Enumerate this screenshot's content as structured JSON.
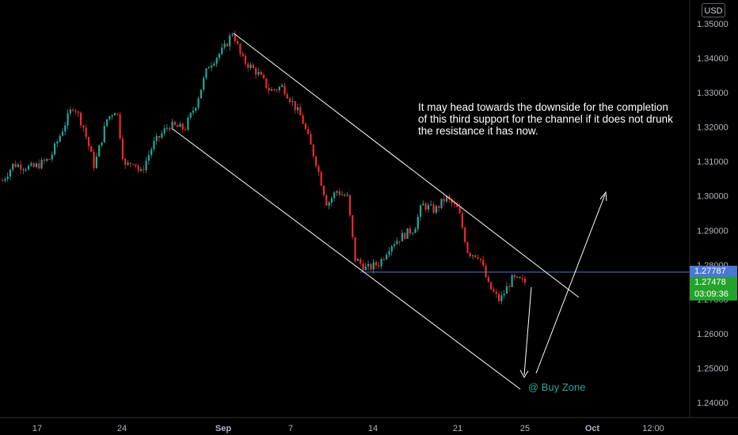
{
  "currency": "USD",
  "annotation_text": "It may head towards the downside for the completion of this third support for the channel if it does not drunk the resistance it has now.",
  "buy_zone_label": "@ Buy Zone",
  "price_tags": {
    "horizontal_line": "1.27787",
    "last_price": "1.27478",
    "countdown": "03:09:36"
  },
  "colors": {
    "up_candle": "#26a69a",
    "down_candle": "#ef2a2a",
    "line_tag": "#4a78d6",
    "last_tag": "#23a32c",
    "drawing": "#ffffff"
  },
  "chart_data": {
    "type": "candlestick",
    "y_ticks": [
      "1.35000",
      "1.34000",
      "1.33000",
      "1.32000",
      "1.31000",
      "1.30000",
      "1.29000",
      "1.28000",
      "1.27000",
      "1.26000",
      "1.25000",
      "1.24000"
    ],
    "x_ticks": [
      "17",
      "24",
      "Sep",
      "7",
      "14",
      "21",
      "25",
      "Oct",
      "12:00"
    ],
    "ylim": [
      1.2375,
      1.3515
    ],
    "horizontal_line": 1.27787,
    "last_price": 1.27478,
    "key_points": {
      "start": 1.3045,
      "rally_high_1": 1.3265,
      "pullback_low": 1.3062,
      "peak": 1.3478,
      "sep_low": 1.2788,
      "rebound_high": 1.2995,
      "recent_low": 1.2695,
      "recent_close": 1.27478
    }
  }
}
